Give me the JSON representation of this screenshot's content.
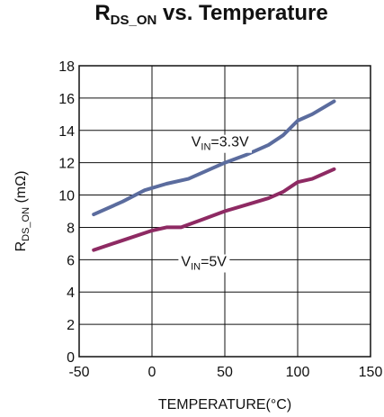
{
  "chart_data": {
    "type": "line",
    "title": {
      "main": "R",
      "sub": "DS_ON",
      "rest": " vs. Temperature"
    },
    "xlabel": "TEMPERATURE(°C)",
    "ylabel": {
      "main": "R",
      "sub": "DS_ON",
      "rest": " (mΩ)"
    },
    "xlim": [
      -50,
      150
    ],
    "ylim": [
      0,
      18
    ],
    "xticks": [
      -50,
      0,
      50,
      100,
      150
    ],
    "yticks": [
      0,
      2,
      4,
      6,
      8,
      10,
      12,
      14,
      16,
      18
    ],
    "grid": true,
    "series": [
      {
        "name": {
          "main": "V",
          "sub": "IN",
          "rest": "=3.3V"
        },
        "color": "#5b6c9e",
        "x": [
          -40,
          -20,
          -5,
          10,
          25,
          40,
          50,
          65,
          80,
          90,
          100,
          110,
          125
        ],
        "y": [
          8.8,
          9.6,
          10.3,
          10.7,
          11.0,
          11.6,
          12.0,
          12.5,
          13.1,
          13.7,
          14.6,
          15.0,
          15.8
        ]
      },
      {
        "name": {
          "main": "V",
          "sub": "IN",
          "rest": "=5V"
        },
        "color": "#8e2a63",
        "x": [
          -40,
          -20,
          0,
          10,
          20,
          35,
          50,
          65,
          80,
          90,
          100,
          110,
          125
        ],
        "y": [
          6.6,
          7.2,
          7.8,
          8.0,
          8.0,
          8.5,
          9.0,
          9.4,
          9.8,
          10.2,
          10.8,
          11.0,
          11.6
        ]
      }
    ]
  }
}
